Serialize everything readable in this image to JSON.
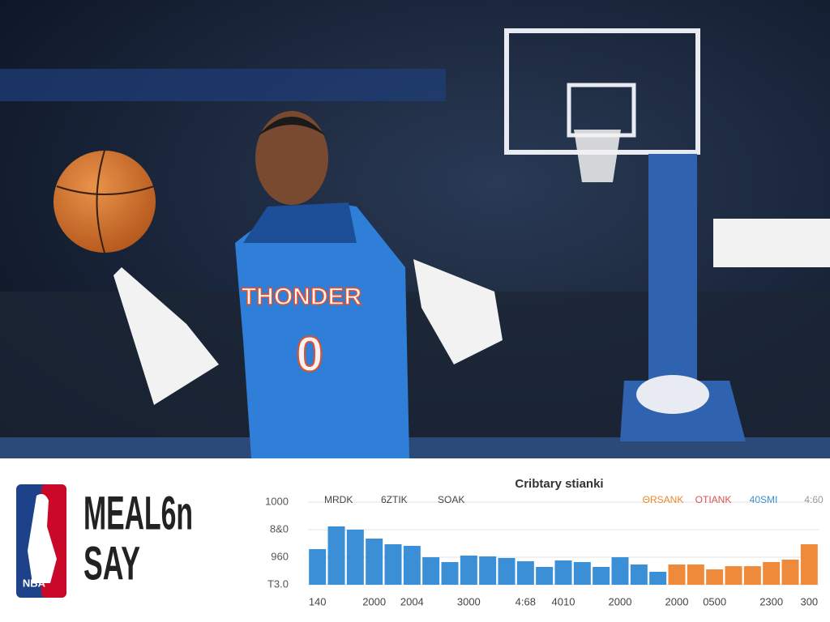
{
  "photo": {
    "jersey_text": "THONDER",
    "jersey_number": "0"
  },
  "logo": {
    "text": "NBA"
  },
  "headline": [
    "MEAL6n",
    "SAY"
  ],
  "chart_data": {
    "type": "bar",
    "title": "Cribtary stianki",
    "annotations_left": [
      "MRDK",
      "6ZTIK",
      "SOAK"
    ],
    "annotations_right": [
      {
        "text": "ΘRSANK",
        "color": "#e8892c"
      },
      {
        "text": "OTIANK",
        "color": "#d9534f"
      },
      {
        "text": "40SMI",
        "color": "#3a8fd6"
      },
      {
        "text": "4:60",
        "color": "#999999"
      }
    ],
    "categories": [
      "140",
      null,
      null,
      "2000",
      null,
      "2004",
      null,
      null,
      "3000",
      null,
      null,
      "4:68",
      null,
      "4010",
      null,
      null,
      "2000",
      null,
      null,
      "2000",
      null,
      "0500",
      null,
      null,
      "2300",
      null,
      "300"
    ],
    "series": [
      {
        "color": "#3a8fd6",
        "values": [
          431,
          706,
          667,
          559,
          490,
          471,
          333,
          275,
          353,
          343,
          324,
          284,
          216,
          294,
          275,
          216,
          333,
          245,
          157,
          null,
          null,
          null,
          null,
          null,
          null,
          null,
          null
        ]
      },
      {
        "color": "#ef8a3a",
        "values": [
          null,
          null,
          null,
          null,
          null,
          null,
          null,
          null,
          null,
          null,
          null,
          null,
          null,
          null,
          null,
          null,
          null,
          null,
          null,
          245,
          245,
          186,
          225,
          225,
          275,
          304,
          490
        ]
      }
    ],
    "ylim": [
      0,
      1000
    ],
    "yticks": [
      1000,
      {
        "value": 667,
        "label": "8&0"
      },
      {
        "value": 333,
        "label": "960"
      },
      {
        "value": 0,
        "label": "T3.0"
      }
    ],
    "grid": true
  }
}
